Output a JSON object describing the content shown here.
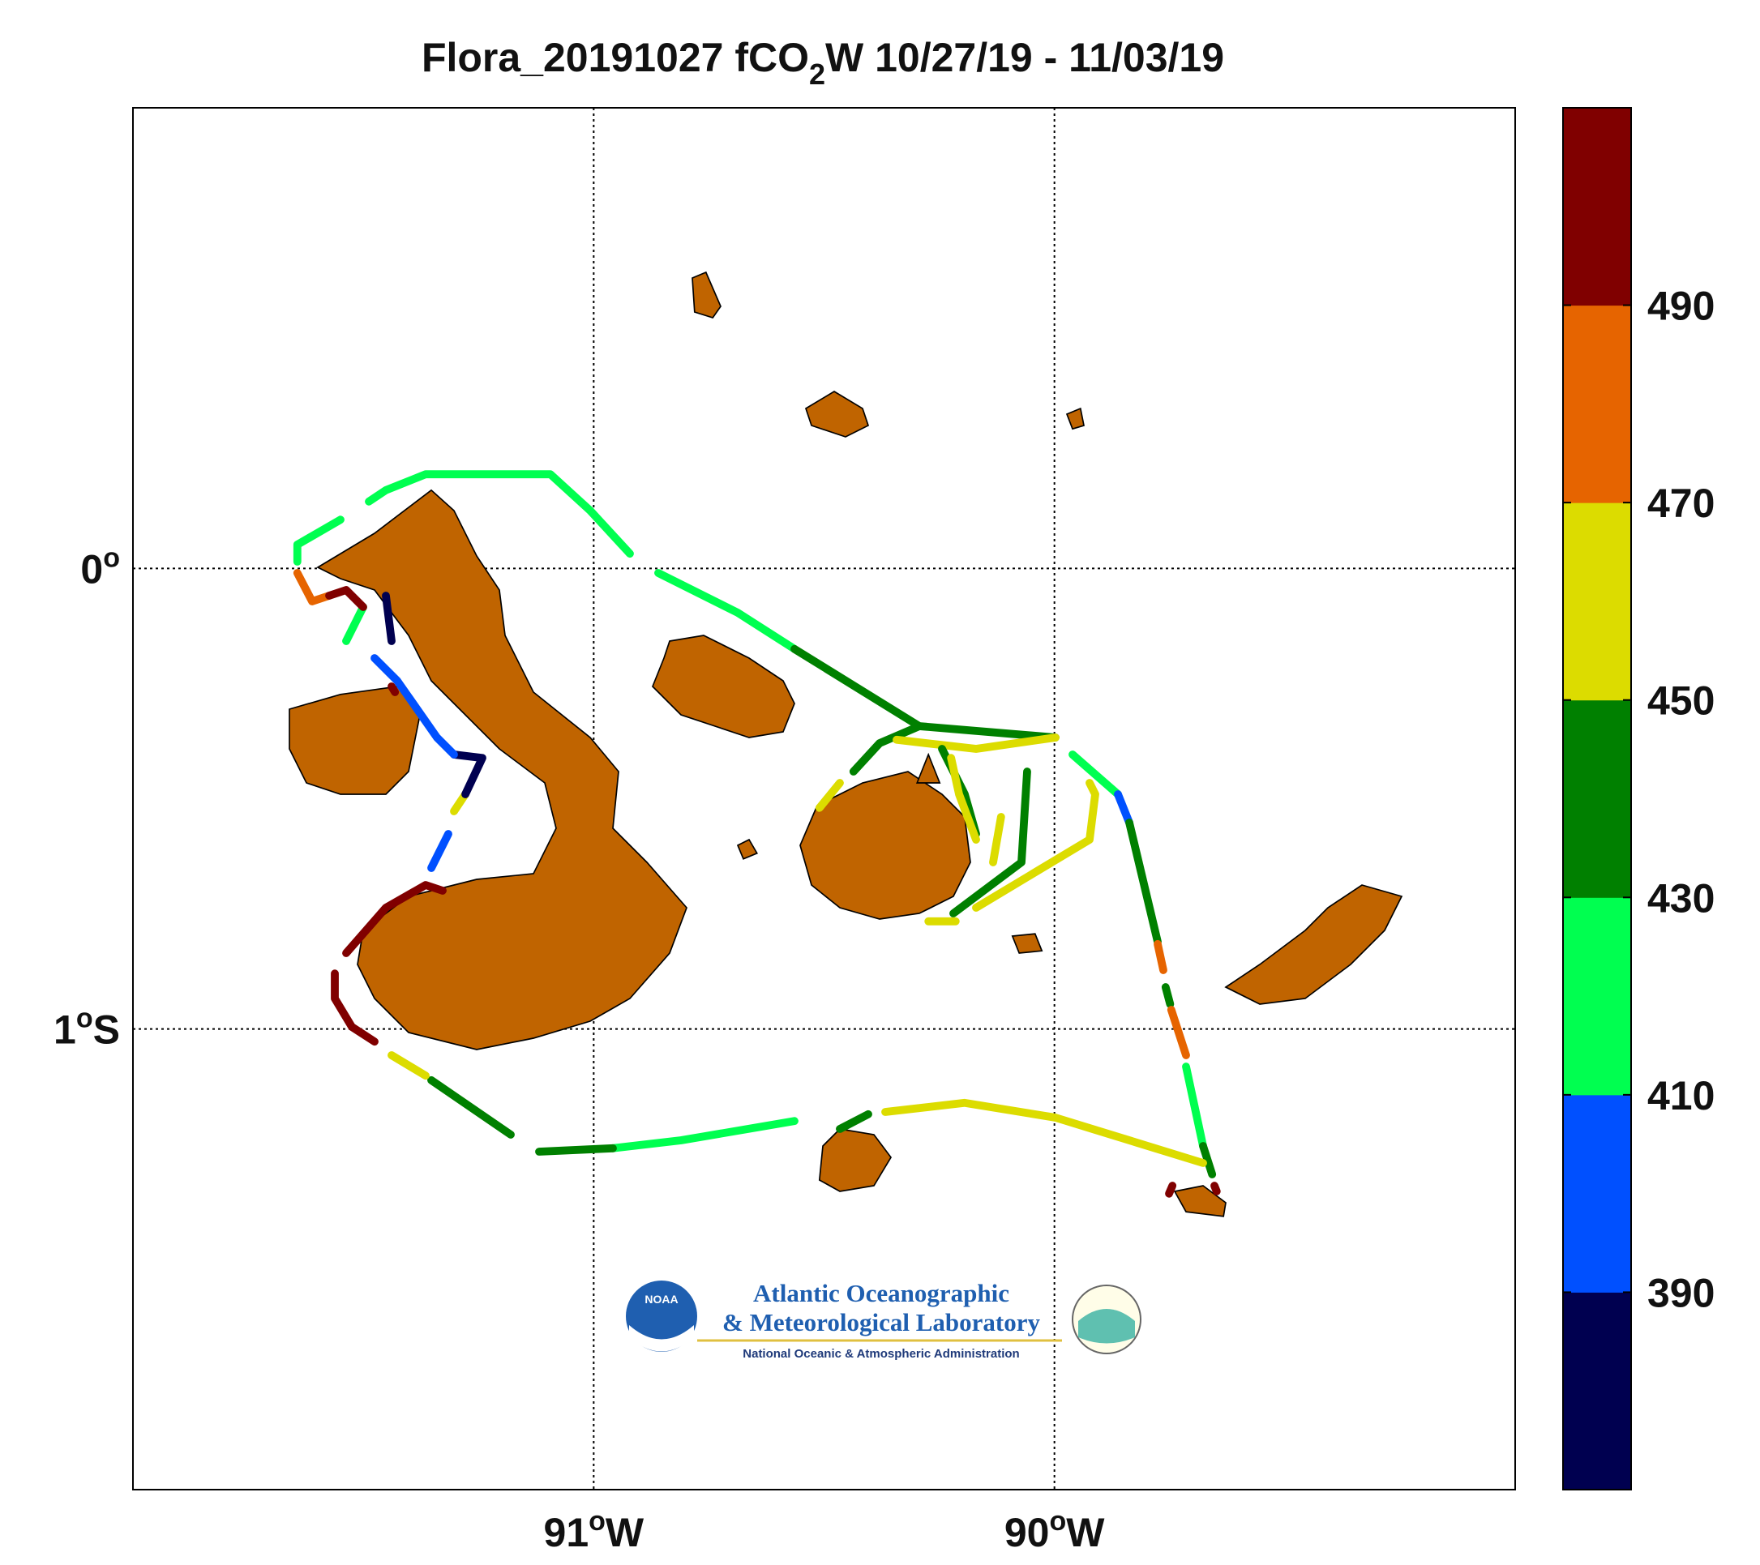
{
  "title": {
    "prefix": "Flora_20191027 fCO",
    "subscript": "2",
    "suffix": "W 10/27/19 - 11/03/19"
  },
  "map": {
    "lonlim": [
      -92,
      -89
    ],
    "latlim": [
      -2,
      1
    ],
    "lonticks": [
      {
        "value": -91,
        "label": "91",
        "degree": "o",
        "hemisphere": "W"
      },
      {
        "value": -90,
        "label": "90",
        "degree": "o",
        "hemisphere": "W"
      }
    ],
    "latticks": [
      {
        "value": 0,
        "label": "0",
        "degree": "o"
      },
      {
        "value": -1,
        "label": "1",
        "degree": "o",
        "hemisphere": "S"
      }
    ]
  },
  "chart_data": {
    "type": "colorbar",
    "clim": [
      370,
      510
    ],
    "ticks": [
      390,
      410,
      430,
      450,
      470,
      490
    ],
    "colors": [
      "#000050",
      "#0050ff",
      "#00ff50",
      "#008000",
      "#dcdc00",
      "#e66400",
      "#800000"
    ]
  },
  "logo": {
    "badge": "NOAA",
    "line1": "Atlantic Oceanographic",
    "line2": "& Meteorological Laboratory",
    "line3": "National Oceanic & Atmospheric Administration"
  }
}
